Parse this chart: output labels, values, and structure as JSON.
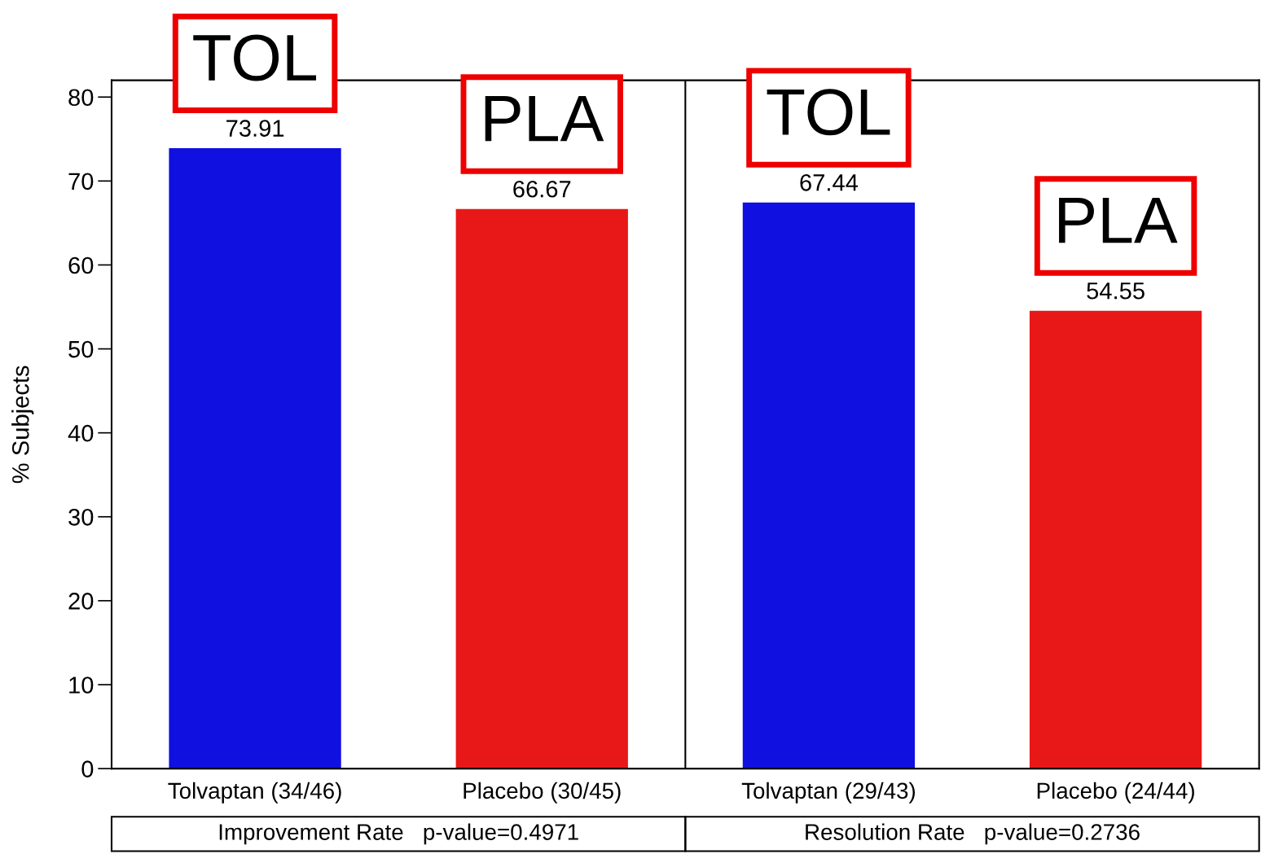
{
  "chart_data": {
    "type": "bar",
    "ylabel": "% Subjects",
    "categories": [
      "Tolvaptan (34/46)",
      "Placebo (30/45)",
      "Tolvaptan (29/43)",
      "Placebo (24/44)"
    ],
    "values": [
      73.91,
      66.67,
      67.44,
      54.55
    ],
    "colors": [
      "#1010e0",
      "#e81818",
      "#1010e0",
      "#e81818"
    ],
    "ylim": [
      0,
      82
    ],
    "yticks": [
      0,
      10,
      20,
      30,
      40,
      50,
      60,
      70,
      80
    ],
    "data_labels": true,
    "grid": false,
    "annotations": [
      "TOL",
      "PLA",
      "TOL",
      "PLA",
      "Improvement Rate   p-value=0.4971",
      "Resolution Rate   p-value=0.2736"
    ]
  }
}
